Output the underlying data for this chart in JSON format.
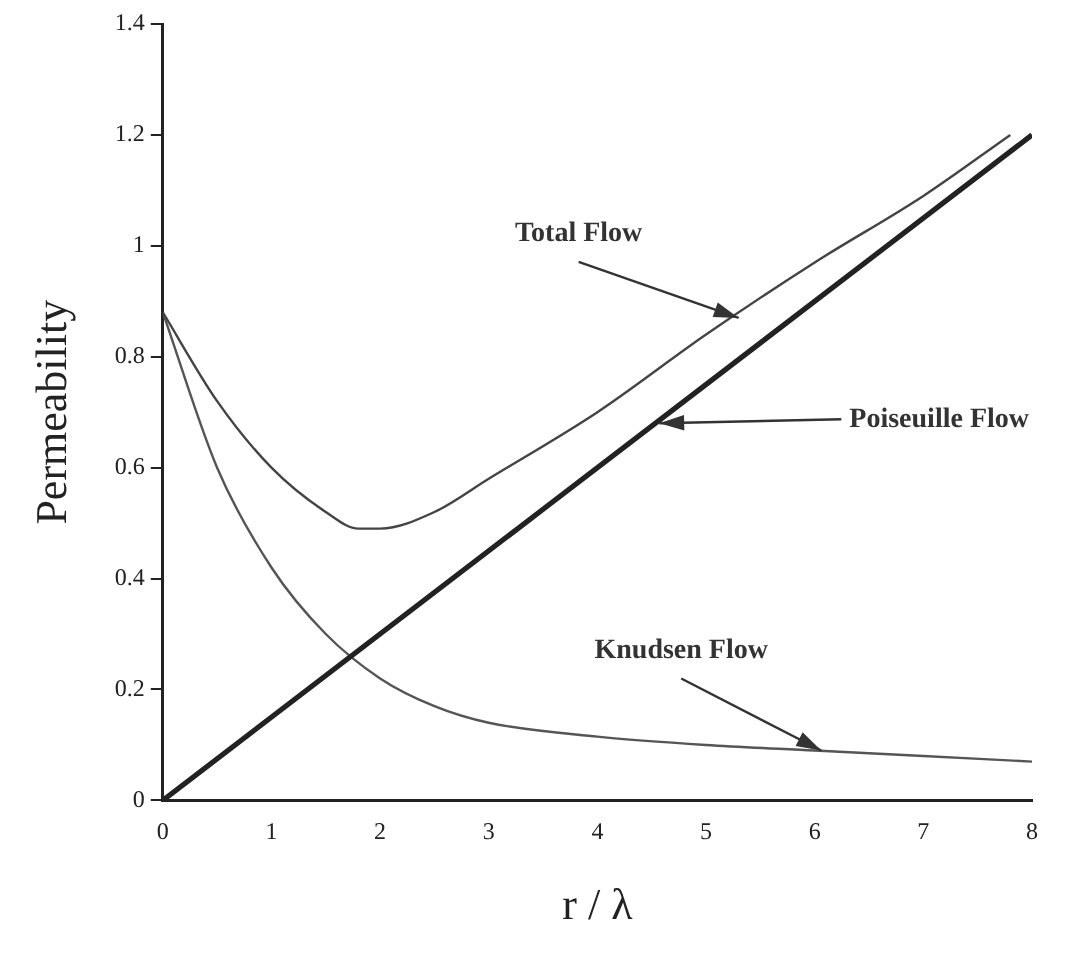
{
  "chart_data": {
    "type": "line",
    "xlabel": "r / λ",
    "ylabel": "Permeability",
    "xlim": [
      0,
      8
    ],
    "xticks": [
      0,
      1,
      2,
      3,
      4,
      5,
      6,
      7,
      8
    ],
    "ylim": [
      0,
      1.4
    ],
    "yticks": [
      0,
      0.2,
      0.4,
      0.6,
      0.8,
      1,
      1.2,
      1.4
    ],
    "grid": false,
    "legend": false,
    "marker": "none",
    "series": [
      {
        "color": "#444444",
        "x": [
          0,
          0.5,
          1,
          1.5,
          1.8,
          2,
          2.5,
          3,
          4,
          5,
          6,
          7,
          7.8
        ],
        "values": [
          0.88,
          0.72,
          0.6,
          0.52,
          0.49,
          0.49,
          0.52,
          0.58,
          0.7,
          0.84,
          0.97,
          1.09,
          1.2
        ]
      },
      {
        "color": "#222222",
        "x": [
          0,
          8
        ],
        "values": [
          0,
          1.2
        ]
      },
      {
        "color": "#555555",
        "x": [
          0,
          0.5,
          1,
          1.5,
          2,
          2.5,
          3,
          4,
          5,
          6,
          7,
          8
        ],
        "values": [
          0.88,
          0.6,
          0.42,
          0.3,
          0.22,
          0.17,
          0.14,
          0.115,
          0.1,
          0.09,
          0.08,
          0.07
        ]
      }
    ],
    "annotations": [
      {
        "text": "Total Flow",
        "x": 5.3,
        "y": 0.87
      },
      {
        "text": "Poiseuille Flow",
        "x": 4.57,
        "y": 0.68
      },
      {
        "text": "Knudsen Flow",
        "x": 6.06,
        "y": 0.09
      }
    ]
  }
}
